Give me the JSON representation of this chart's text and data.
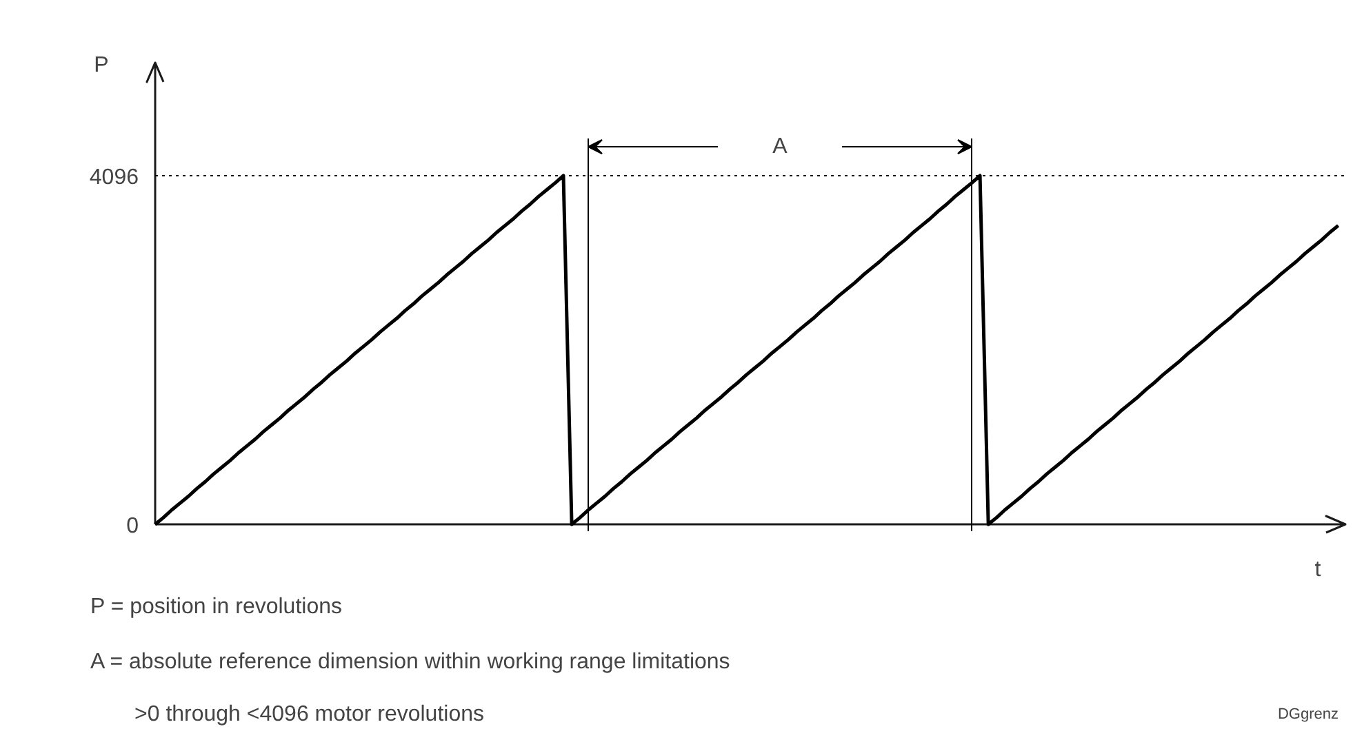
{
  "chart_data": {
    "type": "line",
    "ylabel": "P",
    "xlabel": "t",
    "categories": [
      null,
      null,
      null,
      null,
      null,
      null,
      null,
      null,
      null,
      null,
      null,
      null,
      null,
      null,
      null,
      null,
      null,
      null,
      null,
      null,
      null,
      null,
      null,
      null,
      null,
      null,
      null,
      null,
      null,
      null,
      null,
      null,
      null,
      null,
      null,
      null,
      null,
      null,
      null,
      null,
      null,
      null,
      null,
      null,
      null,
      null,
      null,
      null,
      null,
      null,
      null,
      null,
      null,
      null,
      null,
      null,
      null,
      null,
      null,
      null,
      null,
      null,
      null,
      null,
      null,
      null,
      null,
      null,
      null,
      null,
      null,
      null,
      null,
      null,
      null,
      null,
      null,
      null,
      null,
      null,
      null,
      null,
      null,
      null,
      null,
      null,
      null,
      null,
      null,
      null,
      null,
      null,
      null,
      null,
      null,
      null,
      null,
      null,
      null,
      null,
      null,
      null,
      null,
      null,
      null,
      null,
      null,
      null,
      null,
      null,
      null,
      null,
      null,
      null,
      null,
      null,
      null,
      null,
      null,
      null,
      null,
      null,
      null,
      null,
      null,
      null,
      null,
      null,
      null,
      null,
      null,
      null,
      null,
      null,
      null,
      null,
      null,
      null,
      null,
      null,
      null,
      null,
      null
    ],
    "series": [
      {
        "color": "#000000",
        "values": [
          0,
          80,
          170,
          250,
          330,
          420,
          500,
          590,
          670,
          750,
          840,
          920,
          1000,
          1090,
          1170,
          1250,
          1340,
          1420,
          1500,
          1590,
          1670,
          1760,
          1840,
          1920,
          2010,
          2090,
          2170,
          2260,
          2340,
          2420,
          2510,
          2590,
          2680,
          2760,
          2840,
          2930,
          3010,
          3090,
          3180,
          3260,
          3340,
          3430,
          3510,
          3590,
          3680,
          3760,
          3850,
          3930,
          4010,
          4096,
          0,
          80,
          170,
          250,
          330,
          420,
          500,
          590,
          670,
          750,
          840,
          920,
          1000,
          1090,
          1170,
          1250,
          1340,
          1420,
          1500,
          1590,
          1670,
          1760,
          1840,
          1920,
          2010,
          2090,
          2170,
          2260,
          2340,
          2420,
          2510,
          2590,
          2680,
          2760,
          2840,
          2930,
          3010,
          3090,
          3180,
          3260,
          3340,
          3430,
          3510,
          3590,
          3680,
          3760,
          3850,
          3930,
          4010,
          4096,
          0,
          80,
          170,
          250,
          330,
          420,
          500,
          590,
          670,
          750,
          840,
          920,
          1000,
          1090,
          1170,
          1250,
          1340,
          1420,
          1500,
          1590,
          1670,
          1760,
          1840,
          1920,
          2010,
          2090,
          2170,
          2260,
          2340,
          2420,
          2510,
          2590,
          2680,
          2760,
          2840,
          2930,
          3010,
          3090,
          3180,
          3260,
          3340,
          3430,
          3510
        ]
      }
    ],
    "ylim": [
      0,
      5424
    ],
    "yticks": [
      0,
      4096
    ],
    "tick_labels": "y",
    "ref_lines": [
      {
        "axis": "y",
        "value": 4096,
        "line_style": "dotted",
        "color": "#000000"
      }
    ],
    "annotations": [
      "A",
      "P = position in revolutions",
      "A = absolute reference dimension within working range limitations",
      ">0 through <4096 motor revolutions",
      "DGgrenz"
    ]
  }
}
